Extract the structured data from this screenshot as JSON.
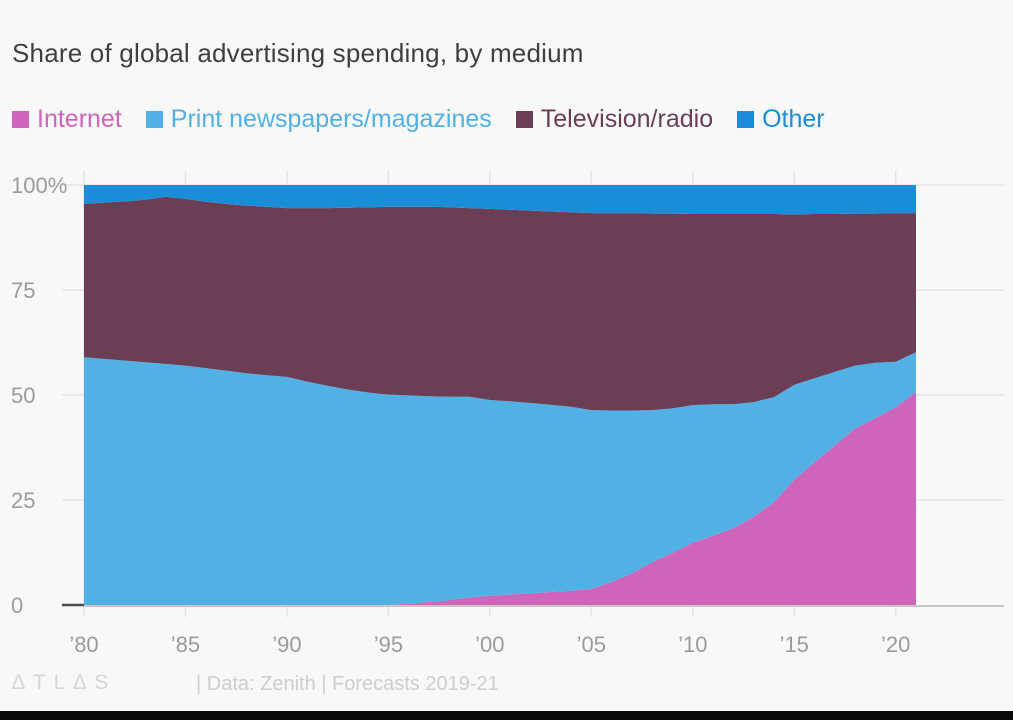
{
  "title": "Share of global advertising spending, by medium",
  "footer": {
    "logo_text": "∆TL∆S",
    "source_text": "| Data: Zenith | Forecasts 2019-21"
  },
  "colors": {
    "background": "#f8f8f8",
    "title_text": "#3f3f3f",
    "axis_text": "#9b9b9b",
    "gridline": "#e4e4e4",
    "baseline": "#c6c6c6",
    "zero_tick": "#4a4a4a",
    "internet": "#cf65ba",
    "print": "#52b1e4",
    "tv_radio": "#6b3e56",
    "other": "#1a8dd8",
    "bottom_bar": "#0a0a0a"
  },
  "chart_data": {
    "type": "area",
    "stacked": true,
    "unit": "percent share",
    "title": "Share of global advertising spending, by medium",
    "xlabel": "",
    "ylabel": "",
    "xlim": [
      1980,
      2021
    ],
    "ylim": [
      0,
      100
    ],
    "grid": true,
    "legend_position": "top",
    "x": [
      1980,
      1981,
      1982,
      1983,
      1984,
      1985,
      1986,
      1987,
      1988,
      1989,
      1990,
      1991,
      1992,
      1993,
      1994,
      1995,
      1996,
      1997,
      1998,
      1999,
      2000,
      2001,
      2002,
      2003,
      2004,
      2005,
      2006,
      2007,
      2008,
      2009,
      2010,
      2011,
      2012,
      2013,
      2014,
      2015,
      2016,
      2017,
      2018,
      2019,
      2020,
      2021
    ],
    "series": [
      {
        "name": "Internet",
        "color": "#cf65ba",
        "values": [
          0,
          0,
          0,
          0,
          0,
          0,
          0,
          0,
          0,
          0,
          0,
          0,
          0,
          0,
          0,
          0,
          0.3,
          0.7,
          1.2,
          1.8,
          2.2,
          2.5,
          2.8,
          3.1,
          3.4,
          3.8,
          5.5,
          7.5,
          10.2,
          12.4,
          14.8,
          16.5,
          18.3,
          21.0,
          24.5,
          29.8,
          34.0,
          38.0,
          42.0,
          44.5,
          47.1,
          50.7
        ]
      },
      {
        "name": "Print newspapers/magazines",
        "color": "#52b1e4",
        "values": [
          59.0,
          58.6,
          58.2,
          57.8,
          57.4,
          57.0,
          56.4,
          55.8,
          55.2,
          54.7,
          54.3,
          53.2,
          52.2,
          51.3,
          50.6,
          50.1,
          49.6,
          49.0,
          48.4,
          47.8,
          46.6,
          46.0,
          45.3,
          44.6,
          43.8,
          42.6,
          40.8,
          38.8,
          36.2,
          34.4,
          32.8,
          31.3,
          29.5,
          27.3,
          25.0,
          22.6,
          20.0,
          17.5,
          15.0,
          13.2,
          10.8,
          9.5
        ]
      },
      {
        "name": "Television/radio",
        "color": "#6b3e56",
        "values": [
          36.5,
          37.2,
          37.9,
          38.7,
          39.8,
          39.7,
          39.6,
          39.7,
          39.9,
          40.1,
          40.2,
          41.3,
          42.3,
          43.3,
          44.1,
          44.7,
          44.9,
          45.1,
          45.1,
          44.9,
          45.5,
          45.6,
          45.8,
          46.0,
          46.3,
          46.9,
          47.0,
          47.0,
          46.8,
          46.4,
          45.5,
          45.3,
          45.3,
          44.8,
          43.6,
          40.6,
          39.1,
          37.6,
          36.2,
          35.5,
          35.4,
          33.1
        ]
      },
      {
        "name": "Other",
        "color": "#1a8dd8",
        "values": [
          4.5,
          4.2,
          3.9,
          3.5,
          2.8,
          3.3,
          4.0,
          4.5,
          4.9,
          5.2,
          5.5,
          5.5,
          5.5,
          5.4,
          5.3,
          5.2,
          5.2,
          5.2,
          5.3,
          5.5,
          5.7,
          5.9,
          6.1,
          6.3,
          6.5,
          6.7,
          6.7,
          6.7,
          6.8,
          6.8,
          6.9,
          6.9,
          6.9,
          6.9,
          6.9,
          7.0,
          6.9,
          6.9,
          6.8,
          6.8,
          6.7,
          6.7
        ]
      }
    ],
    "xticks": {
      "values": [
        1980,
        1985,
        1990,
        1995,
        2000,
        2005,
        2010,
        2015,
        2020
      ],
      "labels": [
        "’80",
        "’85",
        "’90",
        "’95",
        "’00",
        "’05",
        "’10",
        "’15",
        "’20"
      ]
    },
    "yticks": {
      "values": [
        0,
        25,
        50,
        75,
        100
      ],
      "labels": [
        "0",
        "25",
        "50",
        "75",
        "100%"
      ]
    }
  }
}
